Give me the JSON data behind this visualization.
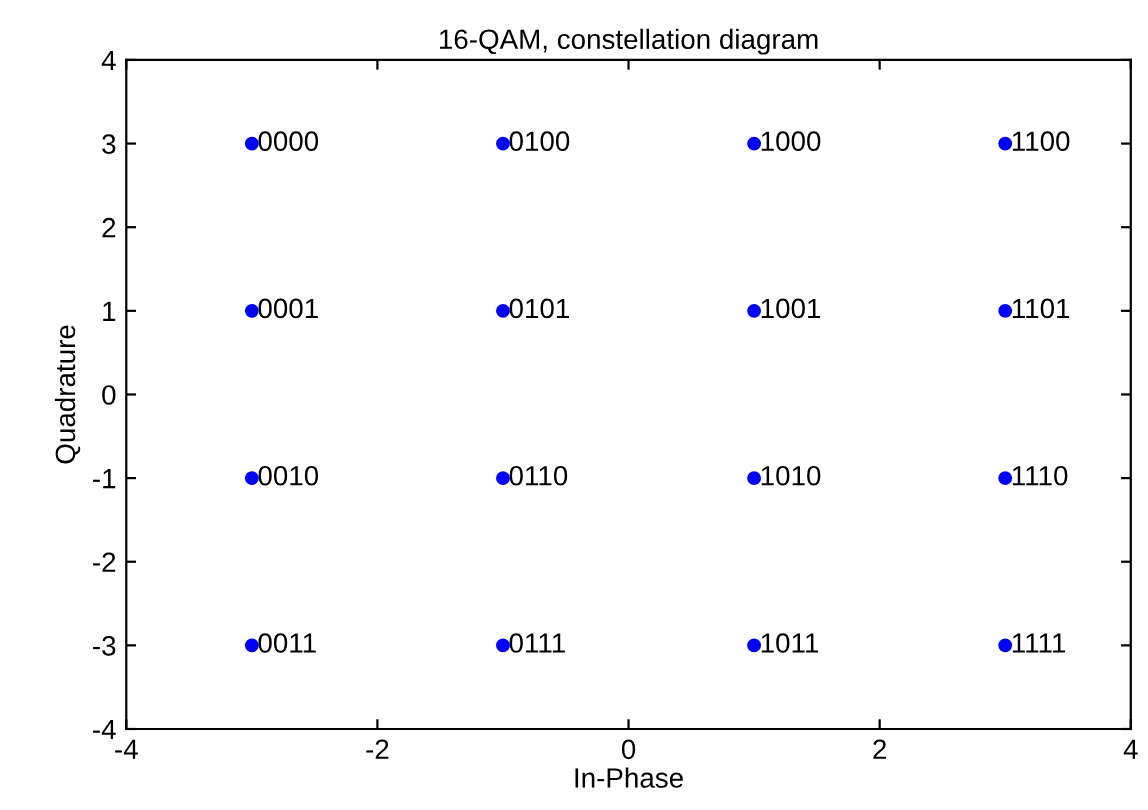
{
  "chart_data": {
    "type": "scatter",
    "title": "16-QAM, constellation diagram",
    "xlabel": "In-Phase",
    "ylabel": "Quadrature",
    "x": [
      -3,
      -1,
      1,
      3,
      -3,
      -1,
      1,
      3,
      -3,
      -1,
      1,
      3,
      -3,
      -1,
      1,
      3
    ],
    "values": [
      3,
      3,
      3,
      3,
      1,
      1,
      1,
      1,
      -1,
      -1,
      -1,
      -1,
      -3,
      -3,
      -3,
      -3
    ],
    "color": "#0000ff",
    "marker": "circle",
    "grid": false,
    "xlim": [
      -4,
      4
    ],
    "xticks": [
      -4,
      -2,
      0,
      2,
      4
    ],
    "ylim": [
      -4,
      4
    ],
    "yticks": [
      -4,
      -3,
      -2,
      -1,
      0,
      1,
      2,
      3,
      4
    ],
    "annotations": [
      {
        "text": "0000",
        "x": -3,
        "y": 3
      },
      {
        "text": "0100",
        "x": -1,
        "y": 3
      },
      {
        "text": "1000",
        "x": 1,
        "y": 3
      },
      {
        "text": "1100",
        "x": 3,
        "y": 3
      },
      {
        "text": "0001",
        "x": -3,
        "y": 1
      },
      {
        "text": "0101",
        "x": -1,
        "y": 1
      },
      {
        "text": "1001",
        "x": 1,
        "y": 1
      },
      {
        "text": "1101",
        "x": 3,
        "y": 1
      },
      {
        "text": "0010",
        "x": -3,
        "y": -1
      },
      {
        "text": "0110",
        "x": -1,
        "y": -1
      },
      {
        "text": "1010",
        "x": 1,
        "y": -1
      },
      {
        "text": "1110",
        "x": 3,
        "y": -1
      },
      {
        "text": "0011",
        "x": -3,
        "y": -3
      },
      {
        "text": "0111",
        "x": -1,
        "y": -3
      },
      {
        "text": "1011",
        "x": 1,
        "y": -3
      },
      {
        "text": "1111",
        "x": 3,
        "y": -3
      }
    ]
  }
}
